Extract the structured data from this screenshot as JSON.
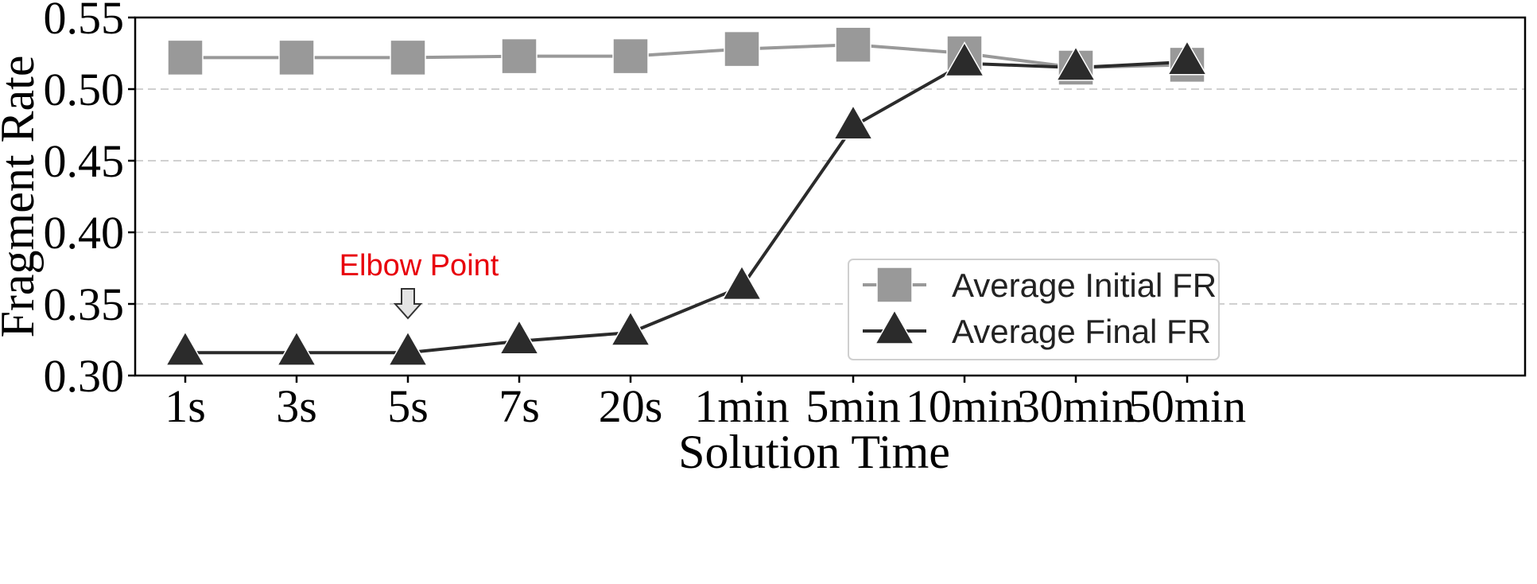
{
  "chart_data": {
    "type": "line",
    "xlabel": "Solution Time",
    "ylabel": "Fragment Rate",
    "categories": [
      "1s",
      "3s",
      "5s",
      "7s",
      "20s",
      "1min",
      "5min",
      "10min",
      "30min",
      "50min"
    ],
    "ylim": [
      0.3,
      0.55
    ],
    "yticks": [
      "0.30",
      "0.35",
      "0.40",
      "0.45",
      "0.50",
      "0.55"
    ],
    "grid": "horizontal-dashed",
    "legend_position": "lower-right",
    "series": [
      {
        "name": "Average Initial FR",
        "marker": "square",
        "color": "#999999",
        "values": [
          0.522,
          0.522,
          0.522,
          0.523,
          0.523,
          0.528,
          0.531,
          0.525,
          0.515,
          0.517
        ]
      },
      {
        "name": "Average Final FR",
        "marker": "triangle",
        "color": "#2b2b2b",
        "values": [
          0.316,
          0.316,
          0.316,
          0.324,
          0.33,
          0.362,
          0.474,
          0.518,
          0.515,
          0.519
        ]
      }
    ],
    "annotations": [
      {
        "text": "Elbow Point",
        "category": "5s",
        "color": "#e8000b"
      }
    ]
  }
}
